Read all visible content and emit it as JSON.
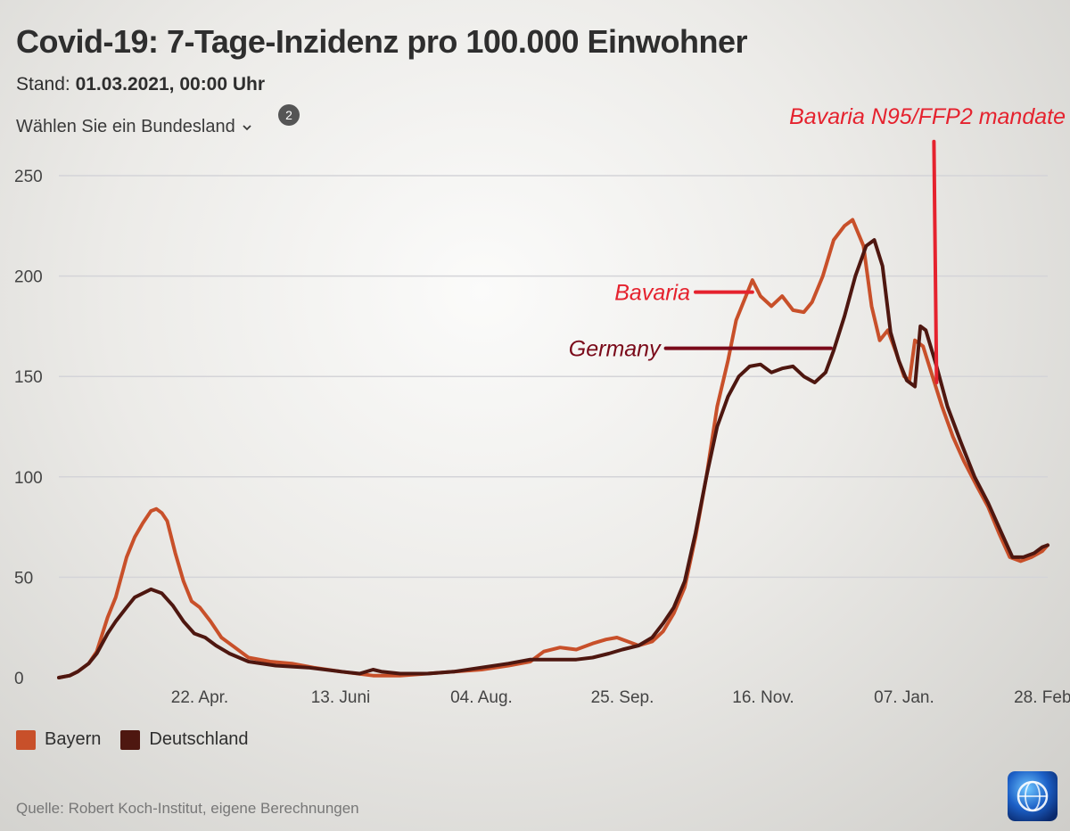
{
  "header": {
    "title": "Covid-19: 7-Tage-Inzidenz pro 100.000 Einwohner",
    "stand_label": "Stand:",
    "stand_value": "01.03.2021, 00:00 Uhr",
    "selector_label": "Wählen Sie ein Bundesland",
    "badge_count": "2"
  },
  "legend": {
    "bayern_label": "Bayern",
    "deutschland_label": "Deutschland"
  },
  "footer": {
    "source": "Quelle: Robert Koch-Institut, eigene Berechnungen"
  },
  "colors": {
    "bayern": "#c8502a",
    "deutschland": "#4e1710",
    "annotation": "#e5222e",
    "annotation_dark": "#7a0a1a",
    "grid": "#d4d4d8",
    "text": "#2e2e2e"
  },
  "chart_data": {
    "type": "line",
    "title": "Covid-19: 7-Tage-Inzidenz pro 100.000 Einwohner",
    "xlabel": "",
    "ylabel": "",
    "x_start": "2020-03-01",
    "x_end": "2021-03-01",
    "ylim": [
      0,
      250
    ],
    "yticks": [
      0,
      50,
      100,
      150,
      200,
      250
    ],
    "xticks": [
      {
        "date": "2020-04-22",
        "label": "22. Apr."
      },
      {
        "date": "2020-06-13",
        "label": "13. Juni"
      },
      {
        "date": "2020-08-04",
        "label": "04. Aug."
      },
      {
        "date": "2020-09-25",
        "label": "25. Sep."
      },
      {
        "date": "2020-11-16",
        "label": "16. Nov."
      },
      {
        "date": "2021-01-07",
        "label": "07. Jan."
      },
      {
        "date": "2021-02-28",
        "label": "28. Feb."
      }
    ],
    "series": [
      {
        "name": "Bayern",
        "points": [
          [
            "2020-03-01",
            0
          ],
          [
            "2020-03-05",
            1
          ],
          [
            "2020-03-08",
            3
          ],
          [
            "2020-03-12",
            7
          ],
          [
            "2020-03-15",
            13
          ],
          [
            "2020-03-19",
            30
          ],
          [
            "2020-03-22",
            40
          ],
          [
            "2020-03-26",
            60
          ],
          [
            "2020-03-29",
            70
          ],
          [
            "2020-04-01",
            77
          ],
          [
            "2020-04-04",
            83
          ],
          [
            "2020-04-06",
            84
          ],
          [
            "2020-04-08",
            82
          ],
          [
            "2020-04-10",
            78
          ],
          [
            "2020-04-13",
            62
          ],
          [
            "2020-04-16",
            48
          ],
          [
            "2020-04-19",
            38
          ],
          [
            "2020-04-22",
            35
          ],
          [
            "2020-04-26",
            28
          ],
          [
            "2020-04-30",
            20
          ],
          [
            "2020-05-05",
            15
          ],
          [
            "2020-05-10",
            10
          ],
          [
            "2020-05-18",
            8
          ],
          [
            "2020-05-26",
            7
          ],
          [
            "2020-06-03",
            5
          ],
          [
            "2020-06-13",
            3
          ],
          [
            "2020-06-25",
            1
          ],
          [
            "2020-07-05",
            1
          ],
          [
            "2020-07-15",
            2
          ],
          [
            "2020-07-25",
            3
          ],
          [
            "2020-08-04",
            4
          ],
          [
            "2020-08-14",
            6
          ],
          [
            "2020-08-22",
            8
          ],
          [
            "2020-08-27",
            13
          ],
          [
            "2020-09-02",
            15
          ],
          [
            "2020-09-08",
            14
          ],
          [
            "2020-09-14",
            17
          ],
          [
            "2020-09-19",
            19
          ],
          [
            "2020-09-23",
            20
          ],
          [
            "2020-09-27",
            18
          ],
          [
            "2020-10-01",
            16
          ],
          [
            "2020-10-06",
            18
          ],
          [
            "2020-10-10",
            23
          ],
          [
            "2020-10-14",
            32
          ],
          [
            "2020-10-18",
            45
          ],
          [
            "2020-10-22",
            70
          ],
          [
            "2020-10-26",
            100
          ],
          [
            "2020-10-30",
            135
          ],
          [
            "2020-11-03",
            158
          ],
          [
            "2020-11-06",
            178
          ],
          [
            "2020-11-09",
            188
          ],
          [
            "2020-11-12",
            198
          ],
          [
            "2020-11-15",
            190
          ],
          [
            "2020-11-19",
            185
          ],
          [
            "2020-11-23",
            190
          ],
          [
            "2020-11-27",
            183
          ],
          [
            "2020-12-01",
            182
          ],
          [
            "2020-12-04",
            187
          ],
          [
            "2020-12-08",
            200
          ],
          [
            "2020-12-12",
            218
          ],
          [
            "2020-12-16",
            225
          ],
          [
            "2020-12-19",
            228
          ],
          [
            "2020-12-23",
            215
          ],
          [
            "2020-12-26",
            185
          ],
          [
            "2020-12-29",
            168
          ],
          [
            "2021-01-01",
            173
          ],
          [
            "2021-01-04",
            162
          ],
          [
            "2021-01-07",
            150
          ],
          [
            "2021-01-09",
            148
          ],
          [
            "2021-01-11",
            168
          ],
          [
            "2021-01-14",
            165
          ],
          [
            "2021-01-17",
            152
          ],
          [
            "2021-01-21",
            135
          ],
          [
            "2021-01-25",
            120
          ],
          [
            "2021-01-29",
            108
          ],
          [
            "2021-02-03",
            95
          ],
          [
            "2021-02-07",
            85
          ],
          [
            "2021-02-11",
            72
          ],
          [
            "2021-02-15",
            60
          ],
          [
            "2021-02-19",
            58
          ],
          [
            "2021-02-23",
            60
          ],
          [
            "2021-02-27",
            63
          ],
          [
            "2021-03-01",
            66
          ]
        ]
      },
      {
        "name": "Deutschland",
        "points": [
          [
            "2020-03-01",
            0
          ],
          [
            "2020-03-05",
            1
          ],
          [
            "2020-03-08",
            3
          ],
          [
            "2020-03-12",
            7
          ],
          [
            "2020-03-15",
            12
          ],
          [
            "2020-03-19",
            22
          ],
          [
            "2020-03-22",
            28
          ],
          [
            "2020-03-26",
            35
          ],
          [
            "2020-03-29",
            40
          ],
          [
            "2020-04-01",
            42
          ],
          [
            "2020-04-04",
            44
          ],
          [
            "2020-04-08",
            42
          ],
          [
            "2020-04-12",
            36
          ],
          [
            "2020-04-16",
            28
          ],
          [
            "2020-04-20",
            22
          ],
          [
            "2020-04-24",
            20
          ],
          [
            "2020-04-28",
            16
          ],
          [
            "2020-05-03",
            12
          ],
          [
            "2020-05-10",
            8
          ],
          [
            "2020-05-20",
            6
          ],
          [
            "2020-06-01",
            5
          ],
          [
            "2020-06-13",
            3
          ],
          [
            "2020-06-20",
            2
          ],
          [
            "2020-06-25",
            4
          ],
          [
            "2020-06-28",
            3
          ],
          [
            "2020-07-05",
            2
          ],
          [
            "2020-07-15",
            2
          ],
          [
            "2020-07-25",
            3
          ],
          [
            "2020-08-04",
            5
          ],
          [
            "2020-08-14",
            7
          ],
          [
            "2020-08-22",
            9
          ],
          [
            "2020-08-30",
            9
          ],
          [
            "2020-09-08",
            9
          ],
          [
            "2020-09-14",
            10
          ],
          [
            "2020-09-20",
            12
          ],
          [
            "2020-09-25",
            14
          ],
          [
            "2020-10-01",
            16
          ],
          [
            "2020-10-06",
            20
          ],
          [
            "2020-10-10",
            27
          ],
          [
            "2020-10-14",
            35
          ],
          [
            "2020-10-18",
            48
          ],
          [
            "2020-10-22",
            72
          ],
          [
            "2020-10-26",
            100
          ],
          [
            "2020-10-30",
            125
          ],
          [
            "2020-11-03",
            140
          ],
          [
            "2020-11-07",
            150
          ],
          [
            "2020-11-11",
            155
          ],
          [
            "2020-11-15",
            156
          ],
          [
            "2020-11-19",
            152
          ],
          [
            "2020-11-23",
            154
          ],
          [
            "2020-11-27",
            155
          ],
          [
            "2020-12-01",
            150
          ],
          [
            "2020-12-05",
            147
          ],
          [
            "2020-12-09",
            152
          ],
          [
            "2020-12-12",
            163
          ],
          [
            "2020-12-16",
            180
          ],
          [
            "2020-12-20",
            200
          ],
          [
            "2020-12-24",
            215
          ],
          [
            "2020-12-27",
            218
          ],
          [
            "2020-12-30",
            205
          ],
          [
            "2021-01-02",
            172
          ],
          [
            "2021-01-05",
            158
          ],
          [
            "2021-01-08",
            148
          ],
          [
            "2021-01-11",
            145
          ],
          [
            "2021-01-13",
            175
          ],
          [
            "2021-01-15",
            173
          ],
          [
            "2021-01-19",
            155
          ],
          [
            "2021-01-23",
            135
          ],
          [
            "2021-01-28",
            117
          ],
          [
            "2021-02-02",
            100
          ],
          [
            "2021-02-07",
            87
          ],
          [
            "2021-02-12",
            72
          ],
          [
            "2021-02-16",
            60
          ],
          [
            "2021-02-20",
            60
          ],
          [
            "2021-02-24",
            62
          ],
          [
            "2021-02-27",
            65
          ],
          [
            "2021-03-01",
            66
          ]
        ]
      }
    ],
    "annotations": [
      {
        "text": "Bavaria",
        "style": "red",
        "from_date": "2020-10-22",
        "to_date": "2020-11-12",
        "value": 192
      },
      {
        "text": "Germany",
        "style": "dark",
        "from_date": "2020-10-11",
        "to_date": "2020-12-11",
        "value": 164
      },
      {
        "text": "Bavaria N95/FFP2 mandate",
        "style": "red",
        "date": "2021-01-18",
        "from_value": 267,
        "to_value": 147
      }
    ]
  }
}
